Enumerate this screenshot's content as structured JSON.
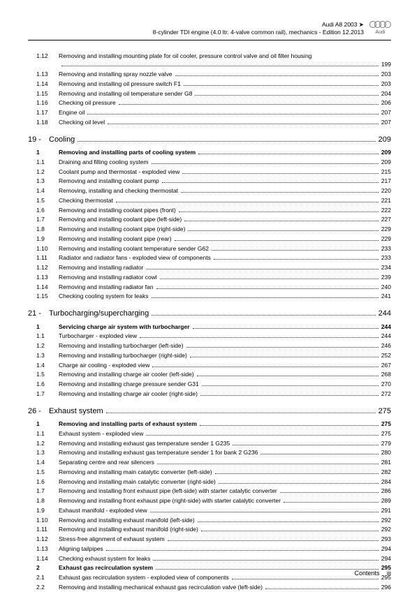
{
  "header": {
    "model": "Audi A8 2003 ➤",
    "subtitle": "8-cylinder TDI engine (4.0 ltr. 4-valve common rail), mechanics - Edition 12.2013",
    "logo_label": "Audi"
  },
  "footer": {
    "contents": "Contents",
    "page": "iii"
  },
  "toc": [
    {
      "num": "1.12",
      "text": "Removing and installing mounting plate for oil cooler, pressure control valve and oil filter housing",
      "page": "199",
      "wrap": true
    },
    {
      "num": "1.13",
      "text": "Removing and installing spray nozzle valve",
      "page": "203"
    },
    {
      "num": "1.14",
      "text": "Removing and installing oil pressure switch F1",
      "page": "203"
    },
    {
      "num": "1.15",
      "text": "Removing and installing oil temperature sender G8",
      "page": "204"
    },
    {
      "num": "1.16",
      "text": "Checking oil pressure",
      "page": "206"
    },
    {
      "num": "1.17",
      "text": "Engine oil",
      "page": "207"
    },
    {
      "num": "1.18",
      "text": "Checking oil level",
      "page": "207"
    },
    {
      "type": "section",
      "num": "19 -",
      "text": "Cooling",
      "page": "209"
    },
    {
      "type": "sub",
      "num": "1",
      "text": "Removing and installing parts of cooling system",
      "page": "209"
    },
    {
      "num": "1.1",
      "text": "Draining and filling cooling system",
      "page": "209"
    },
    {
      "num": "1.2",
      "text": "Coolant pump and thermostat - exploded view",
      "page": "215"
    },
    {
      "num": "1.3",
      "text": "Removing and installing coolant pump",
      "page": "217"
    },
    {
      "num": "1.4",
      "text": "Removing, installing and checking thermostat",
      "page": "220"
    },
    {
      "num": "1.5",
      "text": "Checking thermostat",
      "page": "221"
    },
    {
      "num": "1.6",
      "text": "Removing and installing coolant pipes (front)",
      "page": "222"
    },
    {
      "num": "1.7",
      "text": "Removing and installing coolant pipe (left-side)",
      "page": "227"
    },
    {
      "num": "1.8",
      "text": "Removing and installing coolant pipe (right-side)",
      "page": "229"
    },
    {
      "num": "1.9",
      "text": "Removing and installing coolant pipe (rear)",
      "page": "229"
    },
    {
      "num": "1.10",
      "text": "Removing and installing coolant temperature sender G62",
      "page": "233"
    },
    {
      "num": "1.11",
      "text": "Radiator and radiator fans - exploded view of components",
      "page": "233"
    },
    {
      "num": "1.12",
      "text": "Removing and installing radiator",
      "page": "234"
    },
    {
      "num": "1.13",
      "text": "Removing and installing radiator cowl",
      "page": "239"
    },
    {
      "num": "1.14",
      "text": "Removing and installing radiator fan",
      "page": "240"
    },
    {
      "num": "1.15",
      "text": "Checking cooling system for leaks",
      "page": "241"
    },
    {
      "type": "section",
      "num": "21 -",
      "text": "Turbocharging/supercharging",
      "page": "244"
    },
    {
      "type": "sub",
      "num": "1",
      "text": "Servicing charge air system with turbocharger",
      "page": "244"
    },
    {
      "num": "1.1",
      "text": "Turbocharger - exploded view",
      "page": "244"
    },
    {
      "num": "1.2",
      "text": "Removing and installing turbocharger (left-side)",
      "page": "246"
    },
    {
      "num": "1.3",
      "text": "Removing and installing turbocharger (right-side)",
      "page": "252"
    },
    {
      "num": "1.4",
      "text": "Charge air cooling - exploded view",
      "page": "267"
    },
    {
      "num": "1.5",
      "text": "Removing and installing charge air cooler (left-side)",
      "page": "268"
    },
    {
      "num": "1.6",
      "text": "Removing and installing charge pressure sender G31",
      "page": "270"
    },
    {
      "num": "1.7",
      "text": "Removing and installing charge air cooler (right-side)",
      "page": "272"
    },
    {
      "type": "section",
      "num": "26 -",
      "text": "Exhaust system",
      "page": "275"
    },
    {
      "type": "sub",
      "num": "1",
      "text": "Removing and installing parts of exhaust system",
      "page": "275"
    },
    {
      "num": "1.1",
      "text": "Exhaust system - exploded view",
      "page": "275"
    },
    {
      "num": "1.2",
      "text": "Removing and installing exhaust gas temperature sender 1 G235",
      "page": "279"
    },
    {
      "num": "1.3",
      "text": "Removing and installing exhaust gas temperature sender 1 for bank 2 G236",
      "page": "280"
    },
    {
      "num": "1.4",
      "text": "Separating centre and rear silencers",
      "page": "281"
    },
    {
      "num": "1.5",
      "text": "Removing and installing main catalytic converter (left-side)",
      "page": "282"
    },
    {
      "num": "1.6",
      "text": "Removing and installing main catalytic converter (right-side)",
      "page": "284"
    },
    {
      "num": "1.7",
      "text": "Removing and installing front exhaust pipe (left-side) with starter catalytic converter",
      "page": "286"
    },
    {
      "num": "1.8",
      "text": "Removing and installing front exhaust pipe (right-side) with starter catalytic converter",
      "page": "289"
    },
    {
      "num": "1.9",
      "text": "Exhaust manifold - exploded view",
      "page": "291"
    },
    {
      "num": "1.10",
      "text": "Removing and installing exhaust manifold (left-side)",
      "page": "292"
    },
    {
      "num": "1.11",
      "text": "Removing and installing exhaust manifold (right-side)",
      "page": "292"
    },
    {
      "num": "1.12",
      "text": "Stress-free alignment of exhaust system",
      "page": "293"
    },
    {
      "num": "1.13",
      "text": "Aligning tailpipes",
      "page": "294"
    },
    {
      "num": "1.14",
      "text": "Checking exhaust system for leaks",
      "page": "294"
    },
    {
      "type": "sub",
      "num": "2",
      "text": "Exhaust gas recirculation system",
      "page": "295"
    },
    {
      "num": "2.1",
      "text": "Exhaust gas recirculation system - exploded view of components",
      "page": "295"
    },
    {
      "num": "2.2",
      "text": "Removing and installing mechanical exhaust gas recirculation valve (left-side)",
      "page": "296"
    }
  ]
}
